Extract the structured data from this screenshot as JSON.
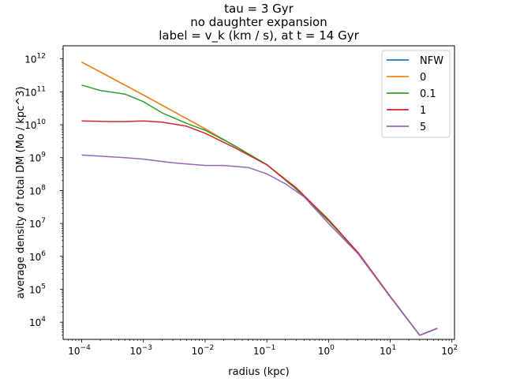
{
  "chart_data": {
    "type": "line",
    "title_lines": [
      "tau = 3 Gyr",
      "no daughter expansion",
      "label = v_k (km / s), at t = 14 Gyr"
    ],
    "xlabel": "radius (kpc)",
    "ylabel": "average density of total DM (Mo / kpc^3)",
    "x_scale": "log",
    "y_scale": "log",
    "xlim": [
      5e-05,
      110
    ],
    "ylim": [
      3000,
      2500000000000
    ],
    "x_ticks": [
      {
        "value": 0.0001,
        "base": "10",
        "exp": "−4"
      },
      {
        "value": 0.001,
        "base": "10",
        "exp": "−3"
      },
      {
        "value": 0.01,
        "base": "10",
        "exp": "−2"
      },
      {
        "value": 0.1,
        "base": "10",
        "exp": "−1"
      },
      {
        "value": 1,
        "base": "10",
        "exp": "0"
      },
      {
        "value": 10,
        "base": "10",
        "exp": "1"
      },
      {
        "value": 100,
        "base": "10",
        "exp": "2"
      }
    ],
    "y_ticks": [
      {
        "value": 10000,
        "base": "10",
        "exp": "4"
      },
      {
        "value": 100000,
        "base": "10",
        "exp": "5"
      },
      {
        "value": 1000000,
        "base": "10",
        "exp": "6"
      },
      {
        "value": 10000000,
        "base": "10",
        "exp": "7"
      },
      {
        "value": 100000000,
        "base": "10",
        "exp": "8"
      },
      {
        "value": 1000000000,
        "base": "10",
        "exp": "9"
      },
      {
        "value": 10000000000,
        "base": "10",
        "exp": "10"
      },
      {
        "value": 100000000000,
        "base": "10",
        "exp": "11"
      },
      {
        "value": 1000000000000,
        "base": "10",
        "exp": "12"
      }
    ],
    "grid": false,
    "legend_position": "top-right",
    "series": [
      {
        "name": "NFW",
        "color": "#1f77b4",
        "x": [
          0.0001,
          0.001,
          0.01,
          0.1,
          0.3,
          1,
          3,
          10,
          30,
          58
        ],
        "y": [
          800000000000,
          80000000000,
          7500000000,
          610000000,
          110000000,
          12000000,
          1300000,
          60000,
          4000,
          6500
        ]
      },
      {
        "name": "0",
        "color": "#ff7f0e",
        "x": [
          0.0001,
          0.001,
          0.01,
          0.1,
          0.3,
          1,
          3,
          10,
          30,
          58
        ],
        "y": [
          800000000000,
          80000000000,
          7500000000,
          610000000,
          110000000,
          12000000,
          1300000,
          60000,
          4000,
          6500
        ]
      },
      {
        "name": "0.1",
        "color": "#2ca02c",
        "x": [
          0.0001,
          0.0002,
          0.0005,
          0.001,
          0.002,
          0.005,
          0.01,
          0.03,
          0.1,
          0.3,
          1,
          3,
          10,
          30,
          58
        ],
        "y": [
          160000000000,
          110000000000,
          85000000000,
          50000000000,
          23000000000,
          11000000000,
          6800000000,
          2300000000,
          610000000,
          110000000,
          12000000,
          1300000,
          60000,
          4000,
          6500
        ]
      },
      {
        "name": "1",
        "color": "#d62728",
        "x": [
          0.0001,
          0.0003,
          0.0005,
          0.001,
          0.002,
          0.005,
          0.01,
          0.03,
          0.1,
          0.3,
          1,
          3,
          10,
          30,
          58
        ],
        "y": [
          13000000000,
          12500000000,
          12500000000,
          13000000000,
          12000000000,
          9000000000,
          5500000000,
          2000000000,
          600000000,
          120000000,
          13000000,
          1300000,
          60000,
          4000,
          6500
        ]
      },
      {
        "name": "5",
        "color": "#9467bd",
        "x": [
          0.0001,
          0.0005,
          0.001,
          0.003,
          0.01,
          0.02,
          0.05,
          0.1,
          0.2,
          0.4,
          1,
          3,
          10,
          30,
          58
        ],
        "y": [
          1200000000,
          1000000000,
          900000000,
          700000000,
          580000000,
          580000000,
          500000000,
          320000000,
          160000000,
          65000000,
          10000000,
          1200000,
          58000,
          4000,
          6500
        ]
      }
    ]
  }
}
